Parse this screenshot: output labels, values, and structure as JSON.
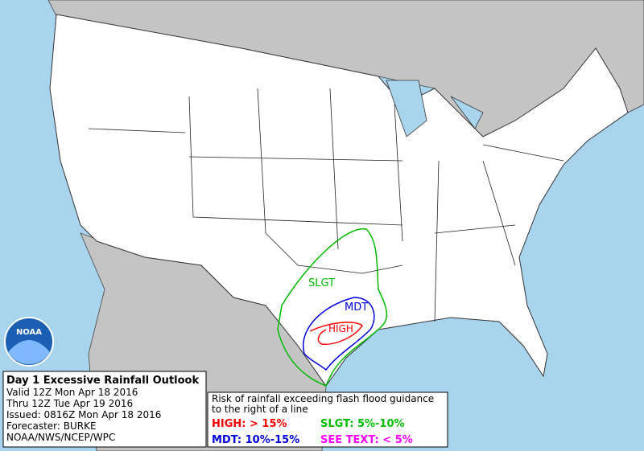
{
  "map": {
    "labels": {
      "slgt": "SLGT",
      "mdt": "MDT",
      "high": "HIGH"
    },
    "logo": "NOAA"
  },
  "info": {
    "title": "Day 1 Excessive Rainfall Outlook",
    "lines": [
      "Valid 12Z Mon Apr 18 2016",
      "Thru 12Z Tue Apr 19 2016",
      "Issued: 0816Z Mon Apr 18 2016",
      "Forecaster: BURKE",
      "NOAA/NWS/NCEP/WPC"
    ]
  },
  "legend": {
    "note": [
      "Risk of rainfall exceeding flash flood guidance",
      "to the right of a line"
    ],
    "items": [
      {
        "text": "HIGH: > 15%",
        "color": "#ff0000"
      },
      {
        "text": "SLGT: 5%-10%",
        "color": "#00bb00"
      },
      {
        "text": "MDT: 10%-15%",
        "color": "#0000dd"
      },
      {
        "text": "SEE TEXT: < 5%",
        "color": "#ff00ff"
      }
    ]
  }
}
